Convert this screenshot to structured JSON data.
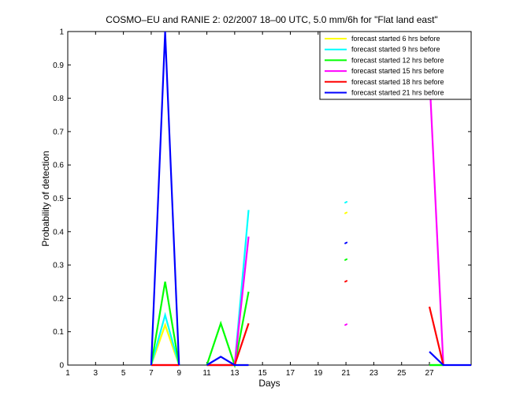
{
  "chart_data": {
    "type": "line",
    "title": "COSMO–EU and RANIE 2: 02/2007 18–00 UTC, 5.0 mm/6h for \"Flat land east\"",
    "xlabel": "Days",
    "ylabel": "Probability of detection",
    "xlim": [
      1,
      30
    ],
    "ylim": [
      0,
      1
    ],
    "xticks": [
      "1",
      "3",
      "5",
      "7",
      "9",
      "11",
      "13",
      "15",
      "17",
      "19",
      "21",
      "23",
      "25",
      "27"
    ],
    "yticks": [
      "0",
      "0.1",
      "0.2",
      "0.3",
      "0.4",
      "0.5",
      "0.6",
      "0.7",
      "0.8",
      "0.9",
      "1"
    ],
    "legend_position": "top-right",
    "grid": false,
    "series": [
      {
        "name": "forecast started 6 hrs before",
        "color": "#ffff00",
        "segments": [
          [
            [
              7,
              0
            ],
            [
              8,
              0.12
            ],
            [
              9,
              0
            ]
          ],
          [
            [
              11,
              0
            ],
            [
              12,
              0
            ],
            [
              13,
              0
            ],
            [
              14,
              0
            ]
          ],
          [
            [
              21,
              0.455
            ]
          ],
          [
            [
              27,
              0
            ],
            [
              28,
              0
            ]
          ]
        ]
      },
      {
        "name": "forecast started 9 hrs before",
        "color": "#00ffff",
        "segments": [
          [
            [
              7,
              0
            ],
            [
              8,
              0.15
            ],
            [
              9,
              0
            ]
          ],
          [
            [
              11,
              0
            ],
            [
              12,
              0
            ],
            [
              13,
              0
            ],
            [
              14,
              0.465
            ]
          ],
          [
            [
              21,
              0.487
            ]
          ],
          [
            [
              27,
              0
            ],
            [
              28,
              0
            ]
          ]
        ]
      },
      {
        "name": "forecast started 12 hrs before",
        "color": "#00ff00",
        "segments": [
          [
            [
              7,
              0
            ],
            [
              8,
              0.25
            ],
            [
              9,
              0
            ]
          ],
          [
            [
              11,
              0
            ],
            [
              12,
              0.125
            ],
            [
              13,
              0
            ],
            [
              14,
              0.22
            ]
          ],
          [
            [
              21,
              0.315
            ]
          ],
          [
            [
              27,
              0
            ],
            [
              28,
              0
            ]
          ]
        ]
      },
      {
        "name": "forecast started 15 hrs before",
        "color": "#ff00ff",
        "segments": [
          [
            [
              7,
              0
            ],
            [
              8,
              0
            ],
            [
              9,
              0
            ]
          ],
          [
            [
              11,
              0
            ],
            [
              12,
              0
            ],
            [
              13,
              0
            ],
            [
              14,
              0.385
            ]
          ],
          [
            [
              21,
              0.12
            ]
          ],
          [
            [
              27,
              0.87
            ],
            [
              28,
              0
            ]
          ]
        ]
      },
      {
        "name": "forecast started 18 hrs before",
        "color": "#ff0000",
        "segments": [
          [
            [
              7,
              0
            ],
            [
              8,
              0
            ],
            [
              9,
              0
            ]
          ],
          [
            [
              11,
              0
            ],
            [
              12,
              0
            ],
            [
              13,
              0
            ],
            [
              14,
              0.125
            ]
          ],
          [
            [
              21,
              0.25
            ]
          ],
          [
            [
              27,
              0.175
            ],
            [
              28,
              0
            ]
          ]
        ]
      },
      {
        "name": "forecast started 21 hrs before",
        "color": "#0000ff",
        "segments": [
          [
            [
              7,
              0
            ],
            [
              8,
              1.0
            ],
            [
              9,
              0
            ]
          ],
          [
            [
              11,
              0
            ],
            [
              12,
              0.025
            ],
            [
              13,
              0
            ],
            [
              14,
              0
            ]
          ],
          [
            [
              21,
              0.365
            ]
          ],
          [
            [
              27,
              0.04
            ],
            [
              28,
              0
            ],
            [
              29,
              0
            ],
            [
              30,
              0
            ]
          ]
        ]
      }
    ]
  }
}
